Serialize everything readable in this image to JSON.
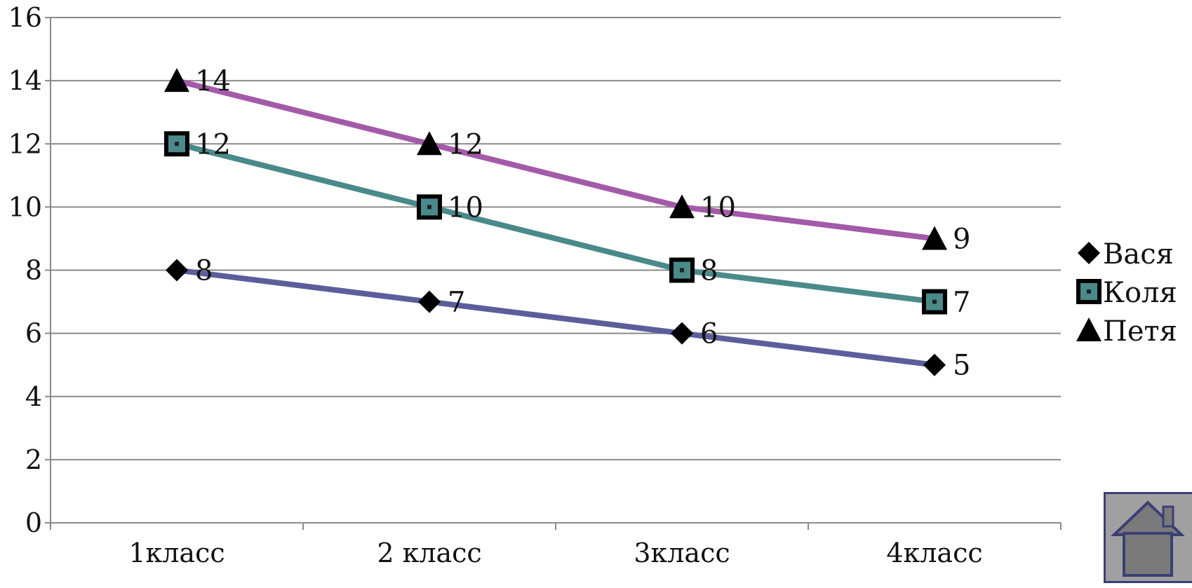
{
  "chart_data": {
    "type": "line",
    "categories": [
      "1класс",
      "2 класс",
      "3класс",
      "4класс"
    ],
    "series": [
      {
        "name": "Вася",
        "values": [
          8,
          7,
          6,
          5
        ],
        "color": "#5b5e9b",
        "marker": "diamond"
      },
      {
        "name": "Коля",
        "values": [
          12,
          10,
          8,
          7
        ],
        "color": "#4a8a8a",
        "marker": "square"
      },
      {
        "name": "Петя",
        "values": [
          14,
          12,
          10,
          9
        ],
        "color": "#a35aa8",
        "marker": "triangle"
      }
    ],
    "ylim": [
      0,
      16
    ],
    "yticks": [
      "0",
      "2",
      "4",
      "6",
      "8",
      "10",
      "12",
      "14",
      "16"
    ],
    "grid": true,
    "legend_position": "right",
    "data_labels": true
  },
  "home_icon": "home-icon"
}
